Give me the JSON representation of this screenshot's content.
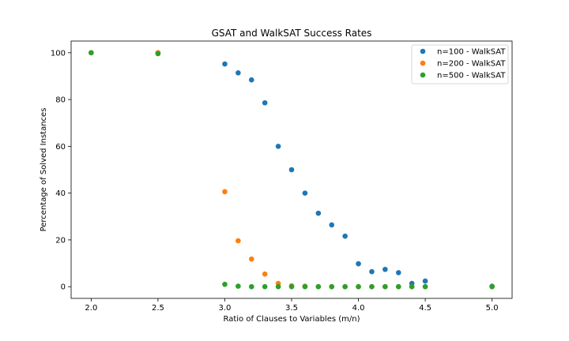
{
  "chart_data": {
    "type": "scatter",
    "title": "GSAT and WalkSAT Success Rates",
    "xlabel": "Ratio of Clauses to Variables (m/n)",
    "ylabel": "Percentage of Solved Instances",
    "xlim": [
      1.85,
      5.15
    ],
    "ylim": [
      -5,
      105
    ],
    "xticks": [
      "2.0",
      "2.5",
      "3.0",
      "3.5",
      "4.0",
      "4.5",
      "5.0"
    ],
    "yticks": [
      "0",
      "20",
      "40",
      "60",
      "80",
      "100"
    ],
    "grid": false,
    "legend_position": "top-right",
    "series": [
      {
        "name": "n=100 - WalkSAT",
        "color": "#1f77b4",
        "points": [
          [
            2.0,
            100
          ],
          [
            2.5,
            100
          ],
          [
            3.0,
            95.2
          ],
          [
            3.1,
            91.4
          ],
          [
            3.2,
            88.4
          ],
          [
            3.3,
            78.6
          ],
          [
            3.4,
            60.0
          ],
          [
            3.5,
            50.0
          ],
          [
            3.6,
            40.0
          ],
          [
            3.7,
            31.4
          ],
          [
            3.8,
            26.4
          ],
          [
            3.9,
            21.6
          ],
          [
            4.0,
            9.8
          ],
          [
            4.1,
            6.4
          ],
          [
            4.2,
            7.4
          ],
          [
            4.3,
            6.0
          ],
          [
            4.4,
            1.4
          ],
          [
            4.5,
            2.4
          ],
          [
            5.0,
            0.2
          ]
        ]
      },
      {
        "name": "n=200 - WalkSAT",
        "color": "#ff7f0e",
        "points": [
          [
            2.0,
            100
          ],
          [
            2.5,
            100
          ],
          [
            3.0,
            40.6
          ],
          [
            3.1,
            19.6
          ],
          [
            3.2,
            11.8
          ],
          [
            3.3,
            5.4
          ],
          [
            3.4,
            1.4
          ],
          [
            3.5,
            0.4
          ],
          [
            3.6,
            0.2
          ],
          [
            3.7,
            0
          ],
          [
            3.8,
            0
          ],
          [
            3.9,
            0
          ],
          [
            4.0,
            0
          ],
          [
            4.1,
            0
          ],
          [
            4.2,
            0
          ],
          [
            4.3,
            0
          ],
          [
            4.4,
            0
          ],
          [
            4.5,
            0
          ],
          [
            5.0,
            0
          ]
        ]
      },
      {
        "name": "n=500 - WalkSAT",
        "color": "#2ca02c",
        "points": [
          [
            2.0,
            100
          ],
          [
            2.5,
            99.6
          ],
          [
            3.0,
            1.0
          ],
          [
            3.1,
            0.2
          ],
          [
            3.2,
            0
          ],
          [
            3.3,
            0
          ],
          [
            3.4,
            0
          ],
          [
            3.5,
            0
          ],
          [
            3.6,
            0
          ],
          [
            3.7,
            0
          ],
          [
            3.8,
            0
          ],
          [
            3.9,
            0
          ],
          [
            4.0,
            0
          ],
          [
            4.1,
            0
          ],
          [
            4.2,
            0
          ],
          [
            4.3,
            0
          ],
          [
            4.4,
            0
          ],
          [
            4.5,
            0
          ],
          [
            5.0,
            0
          ]
        ]
      }
    ]
  }
}
